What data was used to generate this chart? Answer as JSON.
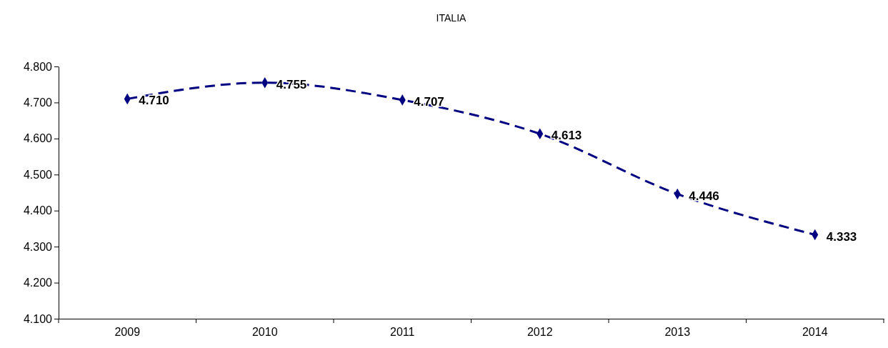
{
  "chart_data": {
    "type": "line",
    "title": "ITALIA",
    "categories": [
      "2009",
      "2010",
      "2011",
      "2012",
      "2013",
      "2014"
    ],
    "series": [
      {
        "color": "#000080",
        "values": [
          4710,
          4755,
          4707,
          4613,
          4446,
          4333
        ],
        "value_labels": [
          "4.710",
          "4.755",
          "4.707",
          "4.613",
          "4.446",
          "4.333"
        ]
      }
    ],
    "ylim": [
      4100,
      4800
    ],
    "yticks": [
      {
        "value": 4100,
        "label": "4.100"
      },
      {
        "value": 4200,
        "label": "4.200"
      },
      {
        "value": 4300,
        "label": "4.300"
      },
      {
        "value": 4400,
        "label": "4.400"
      },
      {
        "value": 4500,
        "label": "4.500"
      },
      {
        "value": 4600,
        "label": "4.600"
      },
      {
        "value": 4700,
        "label": "4.700"
      },
      {
        "value": 4800,
        "label": "4.800"
      }
    ],
    "marker": "diamond",
    "line_style": "dashed"
  }
}
